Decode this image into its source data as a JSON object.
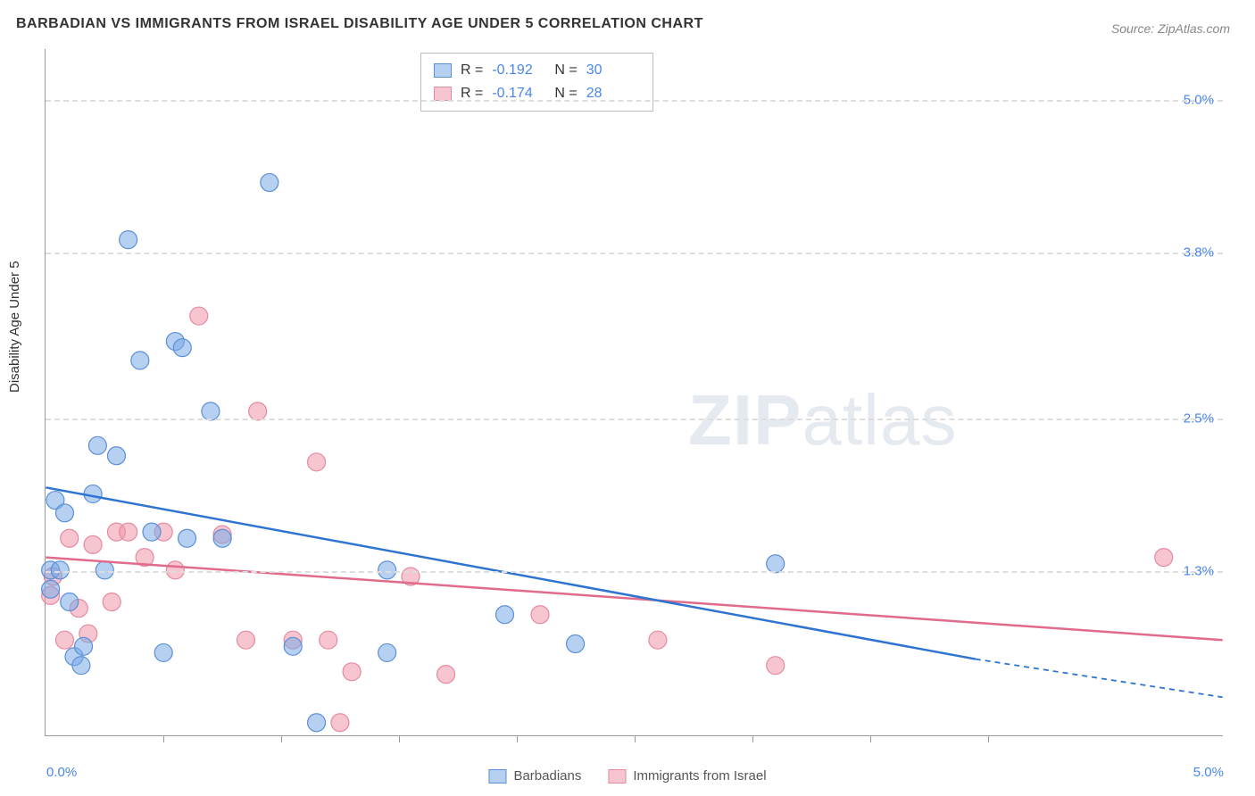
{
  "title": "BARBADIAN VS IMMIGRANTS FROM ISRAEL DISABILITY AGE UNDER 5 CORRELATION CHART",
  "source": "Source: ZipAtlas.com",
  "y_axis_label": "Disability Age Under 5",
  "watermark": {
    "bold": "ZIP",
    "light": "atlas"
  },
  "chart": {
    "type": "scatter",
    "background_color": "#ffffff",
    "grid_color": "#dddddd",
    "axis_color": "#999999",
    "xlim": [
      0.0,
      5.0
    ],
    "ylim": [
      0.0,
      5.4
    ],
    "x_ticks": [
      0.5,
      1.0,
      1.5,
      2.0,
      2.5,
      3.0,
      3.5,
      4.0
    ],
    "y_gridlines": [
      1.3,
      2.5,
      3.8,
      5.0
    ],
    "y_tick_labels": [
      "1.3%",
      "2.5%",
      "3.8%",
      "5.0%"
    ],
    "x_axis_min_label": "0.0%",
    "x_axis_max_label": "5.0%",
    "series": [
      {
        "name": "Barbadians",
        "fill_color": "rgba(120,170,230,0.55)",
        "stroke_color": "#5b8fd6",
        "line_color": "#2e74d0",
        "r_value": "-0.192",
        "n_value": "30",
        "marker_radius": 10,
        "points": [
          [
            0.02,
            1.3
          ],
          [
            0.02,
            1.15
          ],
          [
            0.04,
            1.85
          ],
          [
            0.06,
            1.3
          ],
          [
            0.08,
            1.75
          ],
          [
            0.1,
            1.05
          ],
          [
            0.12,
            0.62
          ],
          [
            0.15,
            0.55
          ],
          [
            0.16,
            0.7
          ],
          [
            0.2,
            1.9
          ],
          [
            0.22,
            2.28
          ],
          [
            0.25,
            1.3
          ],
          [
            0.3,
            2.2
          ],
          [
            0.35,
            3.9
          ],
          [
            0.4,
            2.95
          ],
          [
            0.45,
            1.6
          ],
          [
            0.5,
            0.65
          ],
          [
            0.55,
            3.1
          ],
          [
            0.58,
            3.05
          ],
          [
            0.6,
            1.55
          ],
          [
            0.7,
            2.55
          ],
          [
            0.75,
            1.55
          ],
          [
            0.95,
            4.35
          ],
          [
            1.05,
            0.7
          ],
          [
            1.15,
            0.1
          ],
          [
            1.45,
            0.65
          ],
          [
            1.45,
            1.3
          ],
          [
            1.95,
            0.95
          ],
          [
            2.25,
            0.72
          ],
          [
            3.1,
            1.35
          ]
        ],
        "trend": {
          "x1": 0.0,
          "y1": 1.95,
          "x2": 3.95,
          "y2": 0.6,
          "dash_from_x": 3.95,
          "x_end": 5.0,
          "y_end": 0.3
        }
      },
      {
        "name": "Immigrants from Israel",
        "fill_color": "rgba(240,150,170,0.55)",
        "stroke_color": "#e48aa0",
        "line_color": "#e06b8b",
        "r_value": "-0.174",
        "n_value": "28",
        "marker_radius": 10,
        "points": [
          [
            0.02,
            1.1
          ],
          [
            0.03,
            1.25
          ],
          [
            0.08,
            0.75
          ],
          [
            0.1,
            1.55
          ],
          [
            0.14,
            1.0
          ],
          [
            0.18,
            0.8
          ],
          [
            0.2,
            1.5
          ],
          [
            0.28,
            1.05
          ],
          [
            0.3,
            1.6
          ],
          [
            0.35,
            1.6
          ],
          [
            0.42,
            1.4
          ],
          [
            0.5,
            1.6
          ],
          [
            0.55,
            1.3
          ],
          [
            0.65,
            3.3
          ],
          [
            0.75,
            1.58
          ],
          [
            0.85,
            0.75
          ],
          [
            0.9,
            2.55
          ],
          [
            1.05,
            0.75
          ],
          [
            1.15,
            2.15
          ],
          [
            1.2,
            0.75
          ],
          [
            1.25,
            0.1
          ],
          [
            1.3,
            0.5
          ],
          [
            1.55,
            1.25
          ],
          [
            1.7,
            0.48
          ],
          [
            2.1,
            0.95
          ],
          [
            2.6,
            0.75
          ],
          [
            3.1,
            0.55
          ],
          [
            4.75,
            1.4
          ]
        ],
        "trend": {
          "x1": 0.0,
          "y1": 1.4,
          "x2": 5.0,
          "y2": 0.75
        }
      }
    ],
    "legend": {
      "series1_label": "Barbadians",
      "series2_label": "Immigrants from Israel"
    },
    "stats_labels": {
      "r": "R =",
      "n": "N ="
    }
  }
}
